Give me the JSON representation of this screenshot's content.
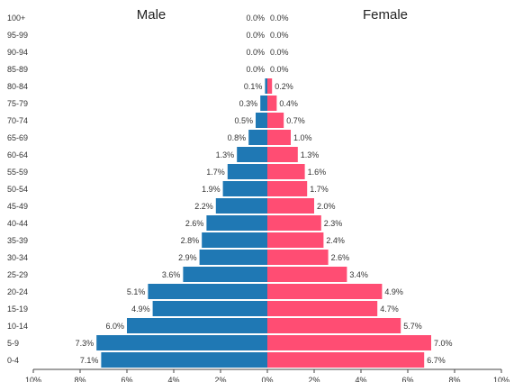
{
  "chart_data": {
    "type": "bar",
    "orientation": "horizontal",
    "layout": "population-pyramid",
    "title": "",
    "xlabel": "",
    "ylabel": "",
    "xlim": [
      -10,
      10
    ],
    "grid": false,
    "legend": "none",
    "panel_titles": {
      "left": "Male",
      "right": "Female"
    },
    "categories": [
      "100+",
      "95-99",
      "90-94",
      "85-89",
      "80-84",
      "75-79",
      "70-74",
      "65-69",
      "60-64",
      "55-59",
      "50-54",
      "45-49",
      "40-44",
      "35-39",
      "30-34",
      "25-29",
      "20-24",
      "15-19",
      "10-14",
      "5-9",
      "0-4"
    ],
    "series": [
      {
        "name": "Male",
        "color": "#1f78b4",
        "values": [
          0.0,
          0.0,
          0.0,
          0.0,
          0.1,
          0.3,
          0.5,
          0.8,
          1.3,
          1.7,
          1.9,
          2.2,
          2.6,
          2.8,
          2.9,
          3.6,
          5.1,
          4.9,
          6.0,
          7.3,
          7.1
        ],
        "labels": [
          "0.0%",
          "0.0%",
          "0.0%",
          "0.0%",
          "0.1%",
          "0.3%",
          "0.5%",
          "0.8%",
          "1.3%",
          "1.7%",
          "1.9%",
          "2.2%",
          "2.6%",
          "2.8%",
          "2.9%",
          "3.6%",
          "5.1%",
          "4.9%",
          "6.0%",
          "7.3%",
          "7.1%"
        ]
      },
      {
        "name": "Female",
        "color": "#ff4d73",
        "values": [
          0.0,
          0.0,
          0.0,
          0.0,
          0.2,
          0.4,
          0.7,
          1.0,
          1.3,
          1.6,
          1.7,
          2.0,
          2.3,
          2.4,
          2.6,
          3.4,
          4.9,
          4.7,
          5.7,
          7.0,
          6.7
        ],
        "labels": [
          "0.0%",
          "0.0%",
          "0.0%",
          "0.0%",
          "0.2%",
          "0.4%",
          "0.7%",
          "1.0%",
          "1.3%",
          "1.6%",
          "1.7%",
          "2.0%",
          "2.3%",
          "2.4%",
          "2.6%",
          "3.4%",
          "4.9%",
          "4.7%",
          "5.7%",
          "7.0%",
          "6.7%"
        ]
      }
    ],
    "x_ticks": [
      "10%",
      "8%",
      "6%",
      "4%",
      "2%",
      "0%",
      "2%",
      "4%",
      "6%",
      "8%",
      "10%"
    ]
  }
}
